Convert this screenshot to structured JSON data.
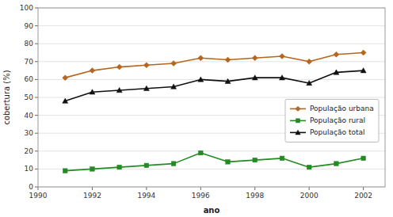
{
  "chart_data": {
    "type": "line",
    "x_label": "ano",
    "y_label": "cobertura (%)",
    "x": [
      1991,
      1992,
      1993,
      1994,
      1995,
      1996,
      1997,
      1998,
      1999,
      2000,
      2001,
      2002
    ],
    "series": [
      {
        "name": "População urbana",
        "color": "#b5651d",
        "marker": "diamond",
        "values": [
          61,
          65,
          67,
          68,
          69,
          72,
          71,
          72,
          73,
          70,
          74,
          75
        ]
      },
      {
        "name": "População rural",
        "color": "#228B22",
        "marker": "square",
        "values": [
          9,
          10,
          11,
          12,
          13,
          19,
          14,
          15,
          16,
          11,
          13,
          16
        ]
      },
      {
        "name": "População total",
        "color": "#111111",
        "marker": "triangle",
        "values": [
          48,
          53,
          54,
          55,
          56,
          60,
          59,
          61,
          61,
          58,
          64,
          65
        ]
      }
    ],
    "xlim": [
      1990,
      2002.8
    ],
    "ylim": [
      0,
      100
    ],
    "xticks": [
      1990,
      1992,
      1994,
      1996,
      1998,
      2000,
      2002
    ],
    "yticks": [
      0,
      10,
      20,
      30,
      40,
      50,
      60,
      70,
      80,
      90,
      100
    ],
    "grid": true,
    "legend": "right"
  }
}
